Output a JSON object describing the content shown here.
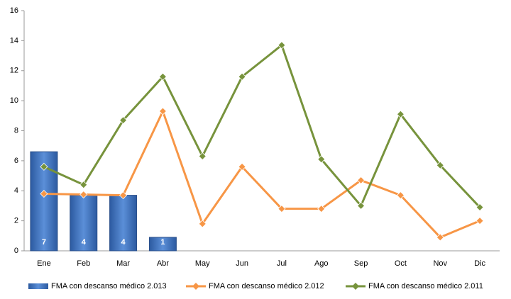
{
  "chart_data": {
    "type": "bar-line",
    "categories": [
      "Ene",
      "Feb",
      "Mar",
      "Abr",
      "May",
      "Jun",
      "Jul",
      "Ago",
      "Sep",
      "Oct",
      "Nov",
      "Dic"
    ],
    "series": [
      {
        "name": "FMA con descanso médico 2.013",
        "type": "bar",
        "color": "#3a6fc0",
        "values": [
          6.6,
          3.7,
          3.7,
          0.9,
          null,
          null,
          null,
          null,
          null,
          null,
          null,
          null
        ],
        "value_labels": [
          "7",
          "4",
          "4",
          "1",
          null,
          null,
          null,
          null,
          null,
          null,
          null,
          null
        ]
      },
      {
        "name": "FMA con descanso médico 2.012",
        "type": "line",
        "color": "#f79646",
        "values": [
          3.8,
          3.75,
          3.7,
          9.3,
          1.8,
          5.6,
          2.8,
          2.8,
          4.7,
          3.7,
          0.9,
          2.0
        ]
      },
      {
        "name": "FMA con descanso médico 2.011",
        "type": "line",
        "color": "#77933c",
        "values": [
          5.6,
          4.4,
          8.7,
          11.6,
          6.3,
          11.6,
          13.7,
          6.1,
          3.0,
          9.1,
          5.7,
          2.9
        ]
      }
    ],
    "ylim": [
      0,
      16
    ],
    "yticks": [
      0,
      2,
      4,
      6,
      8,
      10,
      12,
      14,
      16
    ],
    "grid": false,
    "legend": "bottom"
  }
}
